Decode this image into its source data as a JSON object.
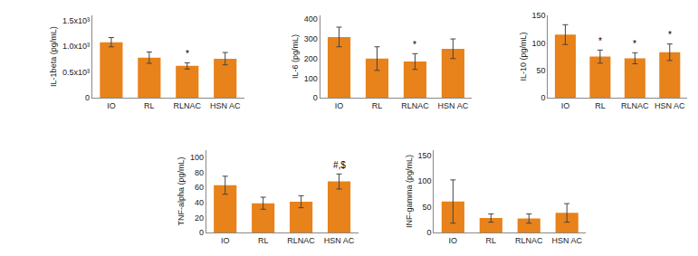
{
  "chart_data": [
    {
      "type": "bar",
      "ylabel": "IL-1beta (pg/mL)",
      "categories": [
        "IO",
        "RL",
        "RLNAC",
        "HSN AC"
      ],
      "values": [
        1080,
        780,
        620,
        760
      ],
      "errors": [
        90,
        110,
        60,
        120
      ],
      "annotations": [
        null,
        null,
        "*",
        null
      ],
      "color": "#E8821A",
      "ylim": [
        0,
        1600
      ],
      "yticks": [
        0,
        {
          "value": 500,
          "label": "0.5x10³"
        },
        {
          "value": 1000,
          "label": "1.0x10³"
        },
        {
          "value": 1500,
          "label": "1.5x10³"
        }
      ],
      "grid": false
    },
    {
      "type": "bar",
      "ylabel": "IL-6 (pg/mL)",
      "categories": [
        "IO",
        "RL",
        "RLNAC",
        "HSN AC"
      ],
      "values": [
        310,
        200,
        185,
        250
      ],
      "errors": [
        50,
        60,
        40,
        50
      ],
      "annotations": [
        null,
        null,
        "*",
        null
      ],
      "color": "#E8821A",
      "ylim": [
        0,
        420
      ],
      "yticks": [
        0,
        100,
        200,
        300,
        400
      ],
      "grid": false
    },
    {
      "type": "bar",
      "ylabel": "IL-10 (pg/mL)",
      "categories": [
        "IO",
        "RL",
        "RLNAC",
        "HSN AC"
      ],
      "values": [
        115,
        75,
        72,
        83
      ],
      "errors": [
        18,
        12,
        10,
        15
      ],
      "annotations": [
        null,
        "*",
        "*",
        "*"
      ],
      "color": "#E8821A",
      "ylim": [
        0,
        150
      ],
      "yticks": [
        0,
        50,
        100,
        150
      ],
      "grid": false
    },
    {
      "type": "bar",
      "ylabel": "TNF-alpha (pg/mL)",
      "categories": [
        "IO",
        "RL",
        "RLNAC",
        "HSN AC"
      ],
      "values": [
        63,
        39,
        41,
        68
      ],
      "errors": [
        12,
        8,
        8,
        10
      ],
      "annotations": [
        null,
        null,
        null,
        "#,$"
      ],
      "color": "#E8821A",
      "ylim": [
        0,
        110
      ],
      "yticks": [
        0,
        20,
        40,
        60,
        80,
        100
      ],
      "grid": false
    },
    {
      "type": "bar",
      "ylabel": "INF-gamma (pg/mL)",
      "categories": [
        "IO",
        "RL",
        "RLNAC",
        "HSN AC"
      ],
      "values": [
        60,
        28,
        27,
        38
      ],
      "errors": [
        42,
        8,
        9,
        18
      ],
      "annotations": [
        null,
        null,
        null,
        null
      ],
      "color": "#E8821A",
      "ylim": [
        0,
        160
      ],
      "yticks": [
        0,
        50,
        100,
        150
      ],
      "grid": false
    }
  ]
}
